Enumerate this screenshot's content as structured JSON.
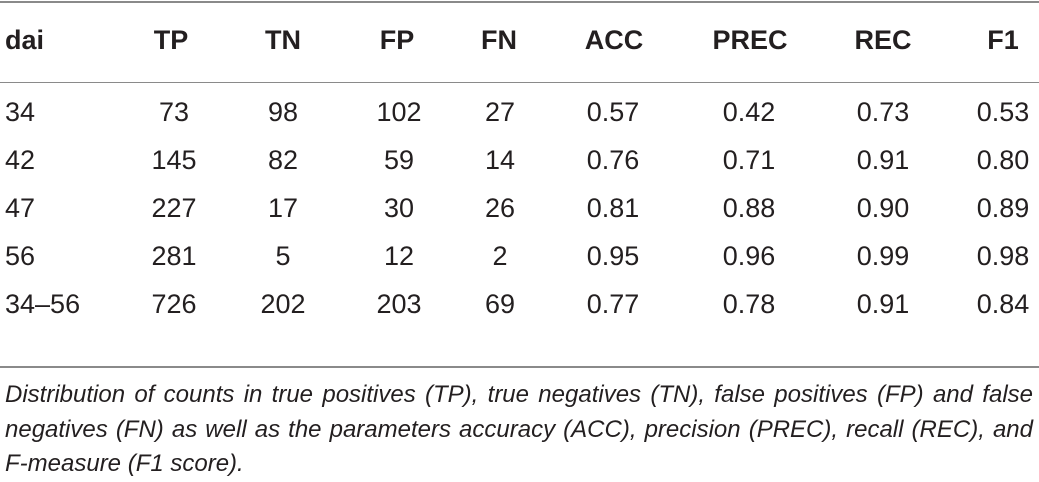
{
  "table": {
    "headers": [
      "dai",
      "TP",
      "TN",
      "FP",
      "FN",
      "ACC",
      "PREC",
      "REC",
      "F1"
    ],
    "rows": [
      [
        "34",
        "73",
        "98",
        "102",
        "27",
        "0.57",
        "0.42",
        "0.73",
        "0.53"
      ],
      [
        "42",
        "145",
        "82",
        "59",
        "14",
        "0.76",
        "0.71",
        "0.91",
        "0.80"
      ],
      [
        "47",
        "227",
        "17",
        "30",
        "26",
        "0.81",
        "0.88",
        "0.90",
        "0.89"
      ],
      [
        "56",
        "281",
        "5",
        "12",
        "2",
        "0.95",
        "0.96",
        "0.99",
        "0.98"
      ],
      [
        "34–56",
        "726",
        "202",
        "203",
        "69",
        "0.77",
        "0.78",
        "0.91",
        "0.84"
      ]
    ]
  },
  "caption": "Distribution of counts in true positives (TP), true negatives (TN), false positives (FP) and false negatives (FN) as well as the parameters accuracy (ACC), precision (PREC), recall (REC), and F-measure (F1 score)."
}
